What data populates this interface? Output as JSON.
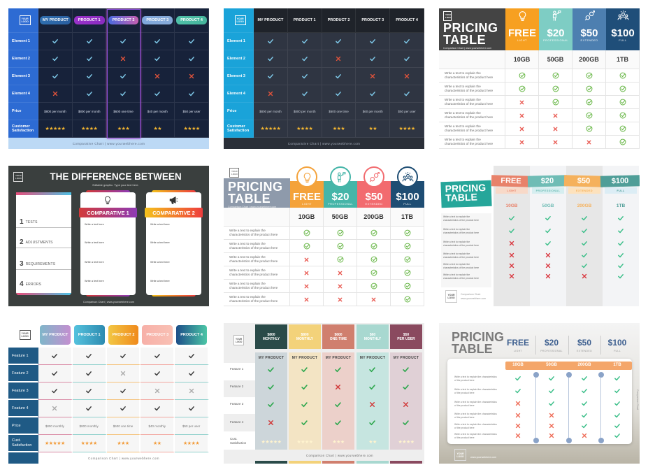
{
  "cards": [
    {
      "template": "dark-comparison",
      "logo": "YOUR LOGO",
      "products": [
        {
          "name": "MY PRODUCT",
          "colors": [
            "#2f6fb0",
            "#2a5fa0"
          ]
        },
        {
          "name": "PRODUCT 1",
          "colors": [
            "#9a32c9",
            "#8a2cc0"
          ]
        },
        {
          "name": "PRODUCT 2",
          "colors": [
            "#4a6be0",
            "#c55fb0"
          ]
        },
        {
          "name": "PRODUCT 3",
          "colors": [
            "#7fa8dc",
            "#86a9d8"
          ]
        },
        {
          "name": "PRODUCT 4",
          "colors": [
            "#4fc0a8",
            "#45b49c"
          ]
        }
      ],
      "rows": [
        "Element 1",
        "Element 2",
        "Element 3",
        "Element 4"
      ],
      "matrix": [
        [
          true,
          true,
          true,
          true,
          true
        ],
        [
          true,
          true,
          false,
          true,
          true
        ],
        [
          true,
          true,
          true,
          false,
          false
        ],
        [
          false,
          true,
          true,
          true,
          true
        ]
      ],
      "price_label": "Price",
      "prices": [
        "$800 per month",
        "$800 per month",
        "$600 one time",
        "$40 per month",
        "$50 per user"
      ],
      "satisfaction_label": "Customer Satisfaction",
      "stars": [
        5,
        4,
        3,
        2,
        4
      ],
      "footer": "Comparative Chart | www.yourwebhere.com",
      "highlighted_product": "PRODUCT 2",
      "colors": {
        "background": "#17223a",
        "label_column": "#2d6bd3",
        "check": "#7ec8e8",
        "cross": "#e0533b",
        "star": "#f5b731",
        "footer_bg": "#bcd9f5",
        "highlight": "#8a4fd8"
      }
    },
    {
      "template": "dark-comparison",
      "logo": "YOUR LOGO",
      "products": [
        {
          "name": "MY PRODUCT"
        },
        {
          "name": "PRODUCT 1"
        },
        {
          "name": "PRODUCT 2"
        },
        {
          "name": "PRODUCT 3"
        },
        {
          "name": "PRODUCT 4"
        }
      ],
      "rows": [
        "Element 1",
        "Element 2",
        "Element 3",
        "Element 4"
      ],
      "matrix": [
        [
          true,
          true,
          true,
          true,
          true
        ],
        [
          true,
          true,
          false,
          true,
          true
        ],
        [
          true,
          true,
          true,
          false,
          false
        ],
        [
          false,
          true,
          true,
          true,
          true
        ]
      ],
      "price_label": "Price",
      "prices": [
        "$800 per month",
        "$800 per month",
        "$600 one time",
        "$60 per month",
        "$50 per user"
      ],
      "satisfaction_label": "Customer Satisfaction",
      "stars": [
        5,
        4,
        3,
        2,
        4
      ],
      "footer": "Comparative Chart | www.yourwebhere.com",
      "colors": {
        "background": "#2f3542",
        "label_column": "#1aa3d9",
        "check": "#7ec8e8",
        "cross": "#e0533b",
        "star": "#f5b731",
        "footer_bg": "#2a2f38"
      }
    },
    {
      "template": "pricing-table",
      "logo": "YOUR LOGO",
      "title": [
        "PRICING",
        "TABLE"
      ],
      "subtitle": "Comparison Chart | www.yourwebhere.com",
      "tiers": [
        {
          "price": "FREE",
          "name": "LIGHT",
          "storage": "10GB",
          "color": "#f7a021",
          "icon": "lightbulb"
        },
        {
          "price": "$20",
          "name": "PROFESSIONAL",
          "storage": "50GB",
          "color": "#7ecdc4",
          "icon": "person-flag"
        },
        {
          "price": "$50",
          "name": "EXTENDED",
          "storage": "200GB",
          "color": "#4d7fb0",
          "icon": "gender"
        },
        {
          "price": "$100",
          "name": "FULL",
          "storage": "1TB",
          "color": "#1f4e79",
          "icon": "people"
        }
      ],
      "features": [
        "Write a text to explain the characteristics of the product here",
        "Write a text to explain the characteristics of the product here",
        "Write a text to explain the characteristics of the product here",
        "Write a text to explain the characteristics of the product here",
        "Write a text to explain the characteristics of the product here",
        "Write a text to explain the characteristics of the product here"
      ],
      "matrix": [
        [
          true,
          true,
          true,
          true
        ],
        [
          true,
          true,
          true,
          true
        ],
        [
          false,
          true,
          true,
          true
        ],
        [
          false,
          false,
          true,
          true
        ],
        [
          false,
          false,
          true,
          true
        ],
        [
          false,
          false,
          false,
          true
        ]
      ],
      "colors": {
        "title_bg": "#444444",
        "check": "#6bb84a",
        "cross": "#e8574f"
      }
    },
    {
      "template": "difference-between",
      "logo": "YOUR LOGO",
      "title": "THE DIFFERENCE BETWEEN",
      "subtitle": "Editable graphic. Type your text here.",
      "items": [
        {
          "num": "1",
          "label": "TESTS"
        },
        {
          "num": "2",
          "label": "ADJUSTMENTS"
        },
        {
          "num": "3",
          "label": "REQUIREMENTS"
        },
        {
          "num": "4",
          "label": "ERRORS"
        }
      ],
      "comparatives": [
        {
          "title": "COMPARATIVE 1",
          "icon": "lightbulb",
          "colors": [
            "#d23a3a",
            "#8e3bb5"
          ],
          "texts": [
            "Write a text here",
            "Write a text here",
            "Write a text here",
            "Write a text here"
          ]
        },
        {
          "title": "COMPARATIVE 2",
          "icon": "megaphone",
          "colors": [
            "#f5c21b",
            "#ee3d3d"
          ],
          "texts": [
            "Write a text here",
            "Write a text here",
            "Write a text here",
            "Write a text here"
          ]
        }
      ],
      "footer": "Comparison Chart | www.yourwebhere.com",
      "colors": {
        "background": "#3a3f3e"
      }
    },
    {
      "template": "pricing-table",
      "logo": "YOUR LOGO",
      "title": [
        "PRICING",
        "TABLE"
      ],
      "subtitle": "Comparison Chart | www.yourwebhere.com",
      "tiers": [
        {
          "price": "FREE",
          "name": "LIGHT",
          "storage": "10GB",
          "color": "#f4a23a",
          "icon": "lightbulb"
        },
        {
          "price": "$20",
          "name": "PROFESSIONAL",
          "storage": "50GB",
          "color": "#45b5a8",
          "icon": "person-flag"
        },
        {
          "price": "$50",
          "name": "EXTENDED",
          "storage": "200GB",
          "color": "#f26b6f",
          "icon": "gender"
        },
        {
          "price": "$100",
          "name": "FULL",
          "storage": "1TB",
          "color": "#1e4d73",
          "icon": "people"
        }
      ],
      "features": [
        "Write a text to explain the characteristics of the product here",
        "Write a text to explain the characteristics of the product here",
        "Write a text to explain the characteristics of the product here",
        "Write a text to explain the characteristics of the product here",
        "Write a text to explain the characteristics of the product here",
        "Write a text to explain the characteristics of the product here"
      ],
      "matrix": [
        [
          true,
          true,
          true,
          true
        ],
        [
          true,
          true,
          true,
          true
        ],
        [
          false,
          true,
          true,
          true
        ],
        [
          false,
          false,
          true,
          true
        ],
        [
          false,
          false,
          true,
          true
        ],
        [
          false,
          false,
          false,
          true
        ]
      ],
      "colors": {
        "title_bg": "#8e9aab",
        "check": "#6bb84a",
        "cross": "#e8574f"
      }
    },
    {
      "template": "ribbon-pricing",
      "logo": "YOUR LOGO",
      "title": [
        "PRICING",
        "TABLE"
      ],
      "footer": [
        "Comparison Chart",
        "www.yourwebhere.com"
      ],
      "tiers": [
        {
          "price": "FREE",
          "name": "LIGHT",
          "storage": "10GB",
          "color": "#e8826a",
          "tint": "#f8d9c8"
        },
        {
          "price": "$20",
          "name": "PROFESSIONAL",
          "storage": "50GB",
          "color": "#6fbcb5",
          "tint": "#d6eef0"
        },
        {
          "price": "$50",
          "name": "EXTENDED",
          "storage": "200GB",
          "color": "#f5b15c",
          "tint": "#fde2bd"
        },
        {
          "price": "$100",
          "name": "FULL",
          "storage": "1TB",
          "color": "#4f9e98",
          "tint": "#dcedf5"
        }
      ],
      "features": [
        "Write a text to explain the characteristics of the product here",
        "Write a text to explain the characteristics of the product here",
        "Write a text to explain the characteristics of the product here",
        "Write a text to explain the characteristics of the product here",
        "Write a text to explain the characteristics of the product here",
        "Write a text to explain the characteristics of the product here"
      ],
      "matrix": [
        [
          true,
          true,
          true,
          true
        ],
        [
          true,
          true,
          true,
          true
        ],
        [
          false,
          true,
          true,
          true
        ],
        [
          false,
          false,
          true,
          true
        ],
        [
          false,
          false,
          true,
          true
        ],
        [
          false,
          false,
          false,
          true
        ]
      ],
      "colors": {
        "title_bg": "#26a69a",
        "check": "#3dbf8a",
        "cross": "#d9363e"
      }
    },
    {
      "template": "light-comparison",
      "logo": "YOUR LOGO",
      "products": [
        {
          "name": "MY PRODUCT",
          "colors": [
            "#7fb6c9",
            "#c48fd0"
          ],
          "line": "#d98aa5"
        },
        {
          "name": "PRODUCT 1",
          "colors": [
            "#55c2de",
            "#2d8bb0"
          ],
          "line": "#8fd0cc"
        },
        {
          "name": "PRODUCT 2",
          "colors": [
            "#f2c744",
            "#f08a1c"
          ],
          "line": "#f5c27a"
        },
        {
          "name": "PRODUCT 3",
          "colors": [
            "#f7b0a8",
            "#f9c0b4"
          ],
          "line": "#f2a7a0"
        },
        {
          "name": "PRODUCT 4",
          "colors": [
            "#1d4e89",
            "#4cc6a6"
          ],
          "line": "#8fd0cc"
        }
      ],
      "rows": [
        "Feature 1",
        "Feature 2",
        "Feature 3",
        "Feature 4"
      ],
      "matrix": [
        [
          true,
          true,
          true,
          true,
          true
        ],
        [
          true,
          true,
          false,
          true,
          true
        ],
        [
          true,
          true,
          true,
          false,
          false
        ],
        [
          false,
          true,
          true,
          true,
          true
        ]
      ],
      "price_label": "Price",
      "prices": [
        "$800 monthly",
        "$800 monthly",
        "$600 one time",
        "$40 monthly",
        "$50 per user"
      ],
      "satisfaction_label": "Cust. Satisfaction",
      "stars": [
        5,
        4,
        3,
        2,
        4
      ],
      "footer": "Comparison Chart | www.yourwebhere.com",
      "colors": {
        "background": "#ffffff",
        "label_column": "#1f5a85",
        "check": "#3b3b3b",
        "cross": "#aaaaaa",
        "star": "#f29b38"
      }
    },
    {
      "template": "column-comparison",
      "logo": "YOUR LOGO",
      "columns": [
        {
          "price": "$800",
          "period": "MONTHLY",
          "product": "MY PRODUCT",
          "color": "#2a4b49",
          "tint": "#cdd6da"
        },
        {
          "price": "$800",
          "period": "MONTHLY",
          "product": "MY PRODUCT",
          "color": "#f3d27a",
          "tint": "#f3e4c4"
        },
        {
          "price": "$600",
          "period": "ONE-TIME",
          "product": "MY PRODUCT",
          "color": "#d07f6e",
          "tint": "#ecd0ca"
        },
        {
          "price": "$60",
          "period": "MONTHLY",
          "product": "MY PRODUCT",
          "color": "#a8d8d0",
          "tint": "#c6e5e0"
        },
        {
          "price": "$50",
          "period": "PER USER",
          "product": "MY PRODUCT",
          "color": "#8a4a5f",
          "tint": "#e0d0d6"
        }
      ],
      "rows": [
        "Feature 1",
        "Feature 2",
        "Feature 3",
        "Feature 4"
      ],
      "matrix": [
        [
          true,
          true,
          true,
          true,
          true
        ],
        [
          true,
          true,
          false,
          true,
          true
        ],
        [
          true,
          true,
          true,
          false,
          false
        ],
        [
          false,
          true,
          true,
          true,
          true
        ]
      ],
      "satisfaction_label": "Cust. Satisfaction",
      "stars": [
        5,
        4,
        3,
        2,
        4
      ],
      "footer": "Comparison Chart | www.yourwebhere.com",
      "colors": {
        "check": "#2fa84f",
        "cross": "#d13b3b",
        "star": "#fff4cf"
      }
    },
    {
      "template": "bar-pricing",
      "logo": "YOUR LOGO",
      "title": [
        "PRICING",
        "TABLE"
      ],
      "side_text": "Comparison Chart",
      "footer": "www.yourwebhere.com",
      "tiers": [
        {
          "price": "FREE",
          "name": "LIGHT",
          "storage": "10GB"
        },
        {
          "price": "$20",
          "name": "PROFESSIONAL",
          "storage": "50GB"
        },
        {
          "price": "$50",
          "name": "EXTENDED",
          "storage": "200GB"
        },
        {
          "price": "$100",
          "name": "FULL",
          "storage": "1TB"
        }
      ],
      "features": [
        "Write a text to explain the characteristics of the product here",
        "Write a text to explain the characteristics of the product here",
        "Write a text to explain the characteristics of the product here",
        "Write a text to explain the characteristics of the product here",
        "Write a text to explain the characteristics of the product here",
        "Write a text to explain the characteristics of the product here"
      ],
      "matrix": [
        [
          true,
          true,
          true,
          true
        ],
        [
          true,
          true,
          true,
          true
        ],
        [
          false,
          true,
          true,
          true
        ],
        [
          false,
          false,
          true,
          true
        ],
        [
          false,
          false,
          true,
          true
        ],
        [
          false,
          false,
          false,
          true
        ]
      ],
      "colors": {
        "bar": "#f4a66a",
        "price": "#3d5f8f",
        "check": "#3dbf8a",
        "cross": "#ee6a55",
        "dot": "#8aa3c8"
      }
    }
  ]
}
